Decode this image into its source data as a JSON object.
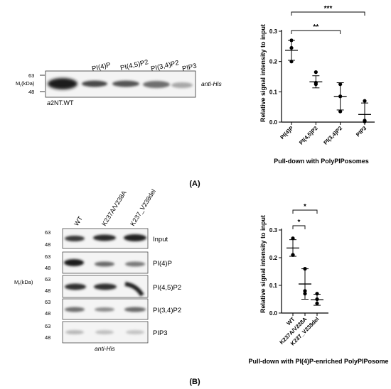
{
  "panel_a": {
    "label": "(A)",
    "blot": {
      "mr_label": "M",
      "mr_sub": "r",
      "mr_unit": "(kDa)",
      "markers": [
        "63",
        "48"
      ],
      "lanes": [
        "PI(4)P",
        "PI(4,5)P2",
        "PI(3,4)P2",
        "PIP3"
      ],
      "right_label": "anti-His",
      "sample_italic": "a",
      "sample_rest": "2NT.WT"
    },
    "chart": {
      "ylabel": "Relative signal intensity to input",
      "xlabel": "Pull-down with PolyPIPosomes",
      "sig_marks": [
        "***",
        "**"
      ]
    }
  },
  "panel_b": {
    "label": "(B)",
    "blot": {
      "mr_label": "M",
      "mr_sub": "r",
      "mr_unit": "(kDa)",
      "column_labels": [
        "WT",
        "K237A/V238A",
        "K237_V238del"
      ],
      "rows": [
        {
          "label": "Input",
          "markers": [
            "63",
            "48"
          ]
        },
        {
          "label": "PI(4)P",
          "markers": [
            "63",
            "48"
          ]
        },
        {
          "label": "PI(4,5)P2",
          "markers": [
            "63",
            "48"
          ]
        },
        {
          "label": "PI(3,4)P2",
          "markers": [
            "63",
            "48"
          ]
        },
        {
          "label": "PIP3",
          "markers": [
            "63",
            "48"
          ]
        }
      ],
      "bottom_label": "anti-His"
    },
    "chart": {
      "ylabel": "Relative signal intensity to input",
      "xlabel": "Pull-down with PI(4)P-enriched PolyPIPosome",
      "sig_marks": [
        "*",
        "*"
      ]
    }
  },
  "chart_data": [
    {
      "type": "scatter",
      "categories": [
        "PI(4)P",
        "PI(4,5)P2",
        "PI(3,4)P2",
        "PIP3"
      ],
      "points": [
        [
          0.27,
          0.245,
          0.2
        ],
        [
          0.165,
          0.13,
          0.125
        ],
        [
          0.125,
          0.085,
          0.035
        ],
        [
          0.07,
          0.005,
          0.002
        ]
      ],
      "means": [
        0.237,
        0.133,
        0.085,
        0.025
      ],
      "errors": [
        0.033,
        0.02,
        0.045,
        0.038
      ],
      "yticks": [
        "0.0",
        "0.1",
        "0.2",
        "0.3"
      ],
      "ylim": [
        0,
        0.3
      ],
      "ylabel": "Relative signal intensity to input",
      "xlabel": "Pull-down with PolyPIPosomes",
      "significance": [
        {
          "from": 0,
          "to": 3,
          "label": "***"
        },
        {
          "from": 0,
          "to": 2,
          "label": "**"
        }
      ]
    },
    {
      "type": "scatter",
      "categories": [
        "WT",
        "K237A/V238A",
        "K237_V238del"
      ],
      "points": [
        [
          0.27,
          0.21,
          0.21
        ],
        [
          0.16,
          0.08,
          0.07
        ],
        [
          0.07,
          0.05,
          0.035
        ]
      ],
      "means": [
        0.235,
        0.105,
        0.048
      ],
      "errors": [
        0.03,
        0.055,
        0.02
      ],
      "yticks": [
        "0.0",
        "0.1",
        "0.2",
        "0.3"
      ],
      "ylim": [
        0,
        0.3
      ],
      "ylabel": "Relative signal intensity to input",
      "xlabel": "Pull-down with PI(4)P-enriched PolyPIPosome",
      "significance": [
        {
          "from": 0,
          "to": 2,
          "label": "*"
        },
        {
          "from": 0,
          "to": 1,
          "label": "*"
        }
      ]
    }
  ]
}
